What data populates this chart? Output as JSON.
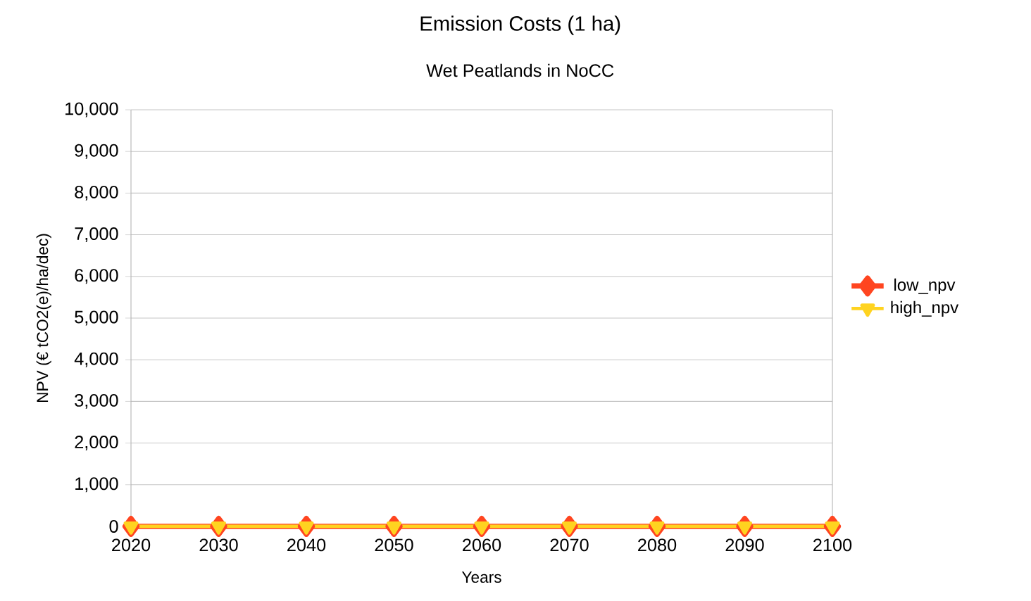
{
  "chart_data": {
    "type": "line",
    "title": "Emission Costs (1 ha)",
    "subtitle": "Wet Peatlands in NoCC",
    "xlabel": "Years",
    "ylabel": "NPV (€ tCO2(e)/ha/dec)",
    "categories": [
      "2020",
      "2030",
      "2040",
      "2050",
      "2060",
      "2070",
      "2080",
      "2090",
      "2100"
    ],
    "series": [
      {
        "name": "low_npv",
        "color": "#ff4520",
        "marker": "diamond",
        "values": [
          0,
          0,
          0,
          0,
          0,
          0,
          0,
          0,
          0
        ]
      },
      {
        "name": "high_npv",
        "color": "#ffd320",
        "marker": "triangle",
        "values": [
          0,
          0,
          0,
          0,
          0,
          0,
          0,
          0,
          0
        ]
      }
    ],
    "ylim": [
      0,
      10000
    ],
    "yticks": [
      {
        "value": 0,
        "label": "0"
      },
      {
        "value": 1000,
        "label": "1,000"
      },
      {
        "value": 2000,
        "label": "2,000"
      },
      {
        "value": 3000,
        "label": "3,000"
      },
      {
        "value": 4000,
        "label": "4,000"
      },
      {
        "value": 5000,
        "label": "5,000"
      },
      {
        "value": 6000,
        "label": "6,000"
      },
      {
        "value": 7000,
        "label": "7,000"
      },
      {
        "value": 8000,
        "label": "8,000"
      },
      {
        "value": 9000,
        "label": "9,000"
      },
      {
        "value": 10000,
        "label": "10,000"
      }
    ],
    "grid": "y",
    "legend": "right",
    "line_style": "solid"
  }
}
